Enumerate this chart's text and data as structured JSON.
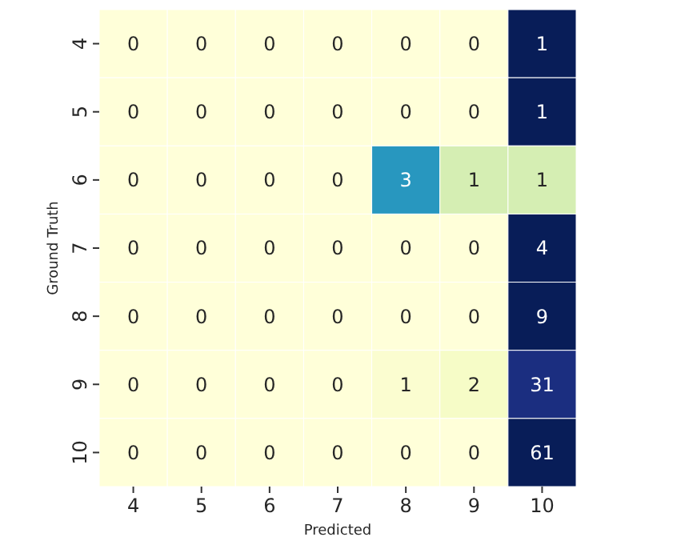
{
  "chart_data": {
    "type": "heatmap",
    "xlabel": "Predicted",
    "ylabel": "Ground Truth",
    "data_labels": true,
    "categories": [
      "4",
      "5",
      "6",
      "7",
      "8",
      "9",
      "10"
    ],
    "y_categories": [
      "4",
      "5",
      "6",
      "7",
      "8",
      "9",
      "10"
    ],
    "cells": [
      [
        0,
        0,
        0,
        0,
        0,
        0,
        1
      ],
      [
        0,
        0,
        0,
        0,
        0,
        0,
        1
      ],
      [
        0,
        0,
        0,
        0,
        3,
        1,
        1
      ],
      [
        0,
        0,
        0,
        0,
        0,
        0,
        4
      ],
      [
        0,
        0,
        0,
        0,
        0,
        0,
        9
      ],
      [
        0,
        0,
        0,
        0,
        1,
        2,
        31
      ],
      [
        0,
        0,
        0,
        0,
        0,
        0,
        61
      ]
    ]
  }
}
